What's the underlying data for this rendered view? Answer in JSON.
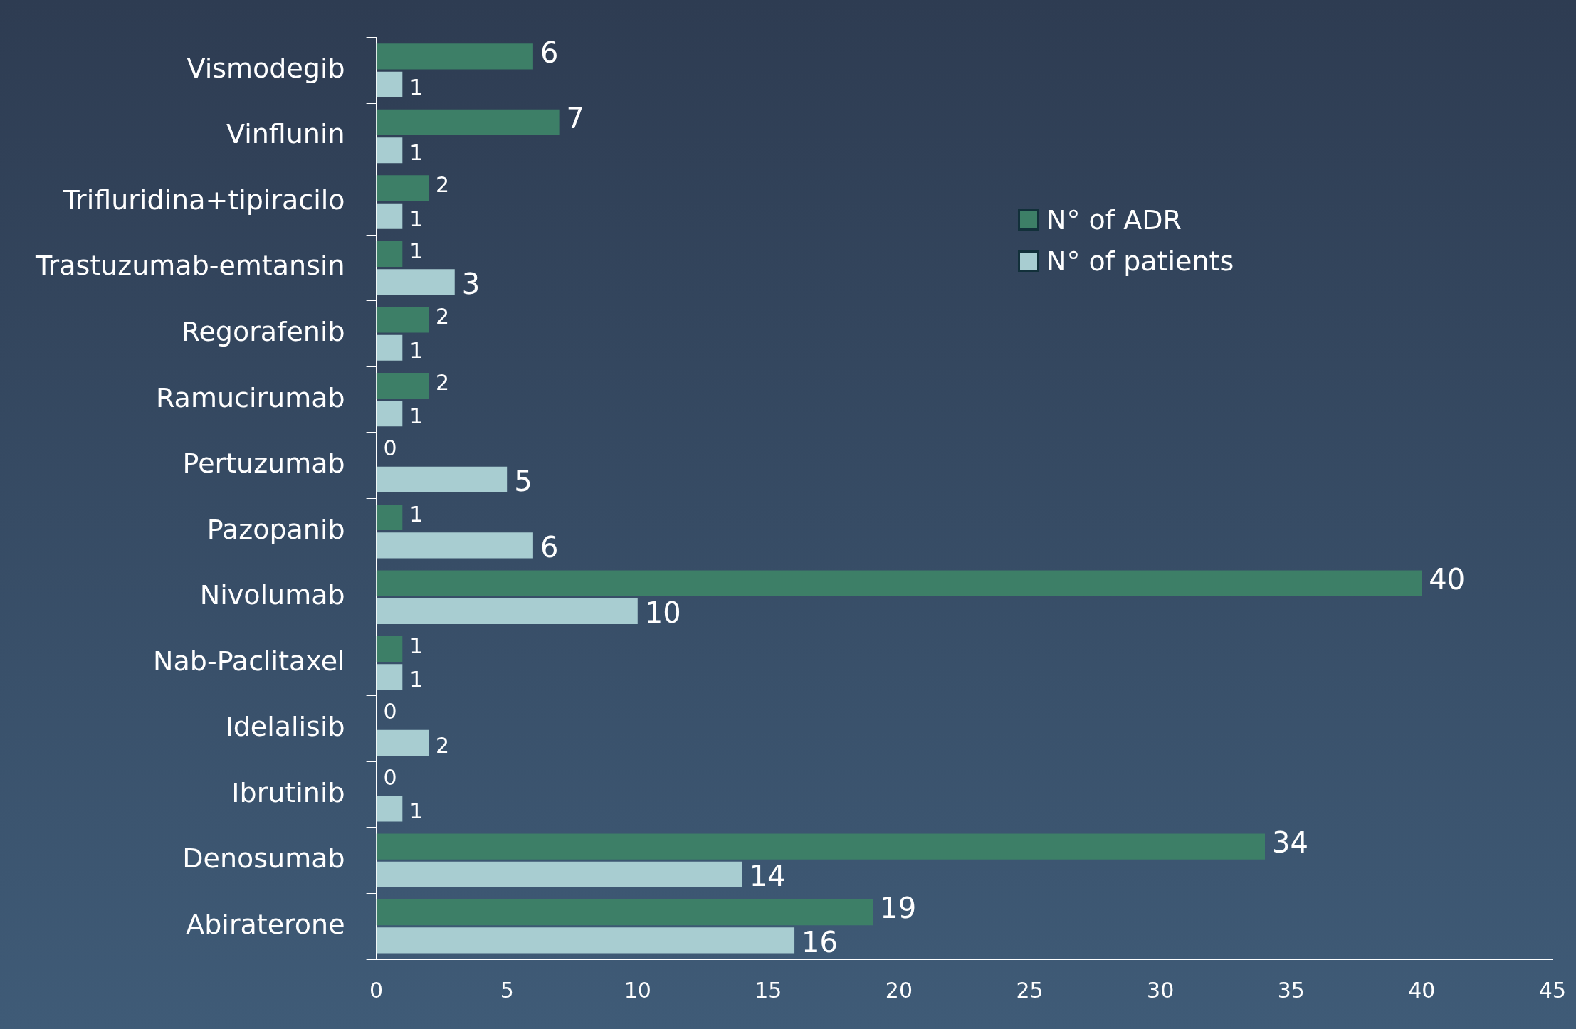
{
  "chart_data": {
    "type": "bar",
    "orientation": "horizontal",
    "categories": [
      "Vismodegib",
      "Vinflunin",
      "Trifluridina+tipiracilo",
      "Trastuzumab-emtansin",
      "Regorafenib",
      "Ramucirumab",
      "Pertuzumab",
      "Pazopanib",
      "Nivolumab",
      "Nab-Paclitaxel",
      "Idelalisib",
      "Ibrutinib",
      "Denosumab",
      "Abiraterone"
    ],
    "series": [
      {
        "name": "N° of ADR",
        "color": "#3d7f67",
        "values": [
          6,
          7,
          2,
          1,
          2,
          2,
          0,
          1,
          40,
          1,
          0,
          0,
          34,
          19
        ]
      },
      {
        "name": "N° of patients",
        "color": "#a8cdd1",
        "values": [
          1,
          1,
          1,
          3,
          1,
          1,
          5,
          6,
          10,
          1,
          2,
          1,
          14,
          16
        ]
      }
    ],
    "xlim": [
      0,
      45
    ],
    "xticks": [
      0,
      5,
      10,
      15,
      20,
      25,
      30,
      35,
      40,
      45
    ],
    "grid": false,
    "legend": "top right",
    "data_labels": true
  }
}
